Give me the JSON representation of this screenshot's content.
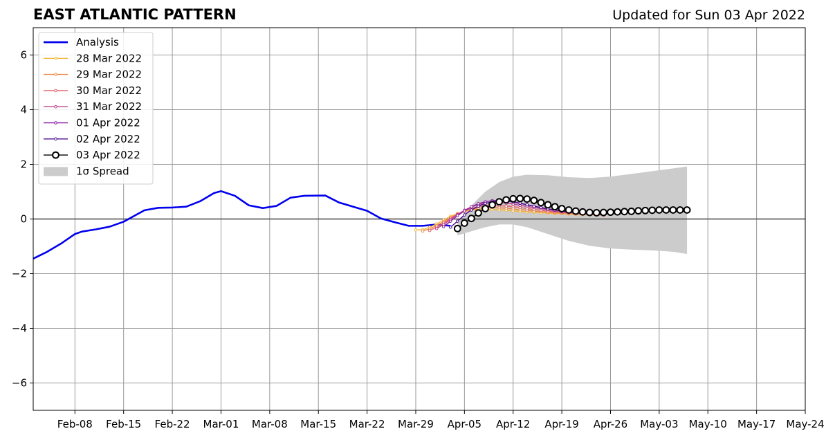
{
  "chart_data": {
    "type": "line",
    "title": "EAST ATLANTIC PATTERN",
    "subtitle": "Updated for Sun 03 Apr 2022",
    "xlabel": "",
    "ylabel": "",
    "x_date_range": [
      "2022-02-02",
      "2022-05-24"
    ],
    "ylim": [
      -7,
      7
    ],
    "grid": true,
    "legend_position": "upper-left",
    "x_tick_labels": [
      "Feb-08",
      "Feb-15",
      "Feb-22",
      "Mar-01",
      "Mar-08",
      "Mar-15",
      "Mar-22",
      "Mar-29",
      "Apr-05",
      "Apr-12",
      "Apr-19",
      "Apr-26",
      "May-03",
      "May-10",
      "May-17",
      "May-24"
    ],
    "y_ticks": [
      6,
      4,
      2,
      0,
      -2,
      -4,
      -6
    ],
    "y_tick_labels": [
      "6",
      "4",
      "2",
      "0",
      "−2",
      "−4",
      "−6"
    ],
    "legend": [
      {
        "label": "Analysis",
        "color": "#0000ee",
        "kind": "thick-line"
      },
      {
        "label": "28 Mar 2022",
        "color": "#f5b73a",
        "kind": "dot-line"
      },
      {
        "label": "29 Mar 2022",
        "color": "#ef8a45",
        "kind": "dot-line"
      },
      {
        "label": "30 Mar 2022",
        "color": "#e0646a",
        "kind": "dot-line"
      },
      {
        "label": "31 Mar 2022",
        "color": "#bf3f8c",
        "kind": "dot-line"
      },
      {
        "label": "01 Apr 2022",
        "color": "#8a1aa1",
        "kind": "dot-line"
      },
      {
        "label": "02 Apr 2022",
        "color": "#4b0c8f",
        "kind": "dot-line"
      },
      {
        "label": "03 Apr 2022",
        "color": "#000000",
        "kind": "circle-line"
      },
      {
        "label": "1σ Spread",
        "color": "#cccccc",
        "kind": "patch"
      }
    ],
    "analysis": {
      "name": "Analysis",
      "color": "#0000ee",
      "x": [
        "2022-02-02",
        "2022-02-04",
        "2022-02-06",
        "2022-02-08",
        "2022-02-09",
        "2022-02-11",
        "2022-02-13",
        "2022-02-15",
        "2022-02-17",
        "2022-02-18",
        "2022-02-20",
        "2022-02-22",
        "2022-02-24",
        "2022-02-26",
        "2022-02-28",
        "2022-03-01",
        "2022-03-03",
        "2022-03-05",
        "2022-03-07",
        "2022-03-09",
        "2022-03-11",
        "2022-03-13",
        "2022-03-16",
        "2022-03-18",
        "2022-03-20",
        "2022-03-22",
        "2022-03-24",
        "2022-03-26",
        "2022-03-28",
        "2022-03-30",
        "2022-04-01",
        "2022-04-03"
      ],
      "y": [
        -1.45,
        -1.2,
        -0.9,
        -0.55,
        -0.46,
        -0.38,
        -0.28,
        -0.1,
        0.18,
        0.32,
        0.41,
        0.42,
        0.45,
        0.65,
        0.95,
        1.02,
        0.85,
        0.5,
        0.4,
        0.48,
        0.78,
        0.85,
        0.86,
        0.6,
        0.45,
        0.3,
        0.02,
        -0.12,
        -0.25,
        -0.25,
        -0.2,
        -0.25
      ]
    },
    "forecasts": [
      {
        "name": "28 Mar 2022",
        "color": "#f5b73a",
        "x_start": "2022-03-29",
        "y": [
          -0.4,
          -0.39,
          -0.3,
          -0.18,
          -0.04,
          0.1,
          0.2,
          0.28,
          0.33,
          0.35,
          0.36,
          0.35,
          0.34,
          0.32,
          0.3,
          0.28,
          0.26,
          0.25,
          0.23,
          0.22,
          0.2,
          0.2,
          0.18,
          0.17,
          0.16,
          0.15,
          0.15,
          0.14
        ]
      },
      {
        "name": "29 Mar 2022",
        "color": "#ef8a45",
        "x_start": "2022-03-30",
        "y": [
          -0.44,
          -0.36,
          -0.24,
          -0.1,
          0.05,
          0.18,
          0.28,
          0.35,
          0.39,
          0.42,
          0.42,
          0.41,
          0.39,
          0.37,
          0.34,
          0.32,
          0.29,
          0.27,
          0.25,
          0.23,
          0.21,
          0.2,
          0.18,
          0.17,
          0.16,
          0.15,
          0.14
        ]
      },
      {
        "name": "30 Mar 2022",
        "color": "#e0646a",
        "x_start": "2022-03-31",
        "y": [
          -0.42,
          -0.3,
          -0.15,
          0.02,
          0.18,
          0.3,
          0.39,
          0.45,
          0.49,
          0.5,
          0.49,
          0.47,
          0.45,
          0.42,
          0.38,
          0.35,
          0.32,
          0.29,
          0.26,
          0.24,
          0.22,
          0.2,
          0.18,
          0.16,
          0.15,
          0.14
        ]
      },
      {
        "name": "31 Mar 2022",
        "color": "#bf3f8c",
        "x_start": "2022-04-01",
        "y": [
          -0.35,
          -0.2,
          -0.02,
          0.16,
          0.32,
          0.44,
          0.53,
          0.58,
          0.6,
          0.6,
          0.58,
          0.55,
          0.5,
          0.46,
          0.42,
          0.38,
          0.34,
          0.3,
          0.27,
          0.24,
          0.22,
          0.2,
          0.18,
          0.17,
          0.16
        ]
      },
      {
        "name": "01 Apr 2022",
        "color": "#8a1aa1",
        "x_start": "2022-04-02",
        "y": [
          -0.28,
          -0.08,
          0.12,
          0.3,
          0.45,
          0.56,
          0.63,
          0.67,
          0.68,
          0.66,
          0.62,
          0.57,
          0.52,
          0.47,
          0.42,
          0.37,
          0.33,
          0.3,
          0.27,
          0.24,
          0.22,
          0.2,
          0.18,
          0.17
        ]
      },
      {
        "name": "02 Apr 2022",
        "color": "#4b0c8f",
        "x_start": "2022-04-03",
        "y": [
          -0.3,
          -0.08,
          0.15,
          0.33,
          0.47,
          0.57,
          0.63,
          0.66,
          0.66,
          0.63,
          0.58,
          0.52,
          0.47,
          0.42,
          0.37,
          0.33,
          0.29,
          0.26,
          0.23,
          0.21,
          0.19,
          0.18,
          0.17
        ]
      }
    ],
    "forecast_0403": {
      "name": "03 Apr 2022",
      "color": "#000000",
      "x_start": "2022-04-04",
      "y": [
        -0.35,
        -0.15,
        0.02,
        0.22,
        0.38,
        0.52,
        0.63,
        0.7,
        0.74,
        0.75,
        0.73,
        0.68,
        0.6,
        0.52,
        0.45,
        0.38,
        0.33,
        0.29,
        0.26,
        0.24,
        0.23,
        0.24,
        0.25,
        0.26,
        0.27,
        0.28,
        0.3,
        0.31,
        0.32,
        0.33,
        0.33,
        0.33,
        0.33,
        0.33
      ]
    },
    "spread": {
      "name": "1σ Spread",
      "color": "#cccccc",
      "x": [
        "2022-04-04",
        "2022-04-06",
        "2022-04-08",
        "2022-04-10",
        "2022-04-12",
        "2022-04-14",
        "2022-04-17",
        "2022-04-20",
        "2022-04-23",
        "2022-04-26",
        "2022-04-29",
        "2022-05-02",
        "2022-05-05",
        "2022-05-07"
      ],
      "upper": [
        -0.15,
        0.5,
        1.0,
        1.35,
        1.55,
        1.62,
        1.6,
        1.53,
        1.5,
        1.55,
        1.65,
        1.75,
        1.85,
        1.92
      ],
      "lower": [
        -0.6,
        -0.45,
        -0.3,
        -0.2,
        -0.2,
        -0.3,
        -0.55,
        -0.8,
        -0.98,
        -1.08,
        -1.12,
        -1.15,
        -1.2,
        -1.28
      ]
    }
  }
}
